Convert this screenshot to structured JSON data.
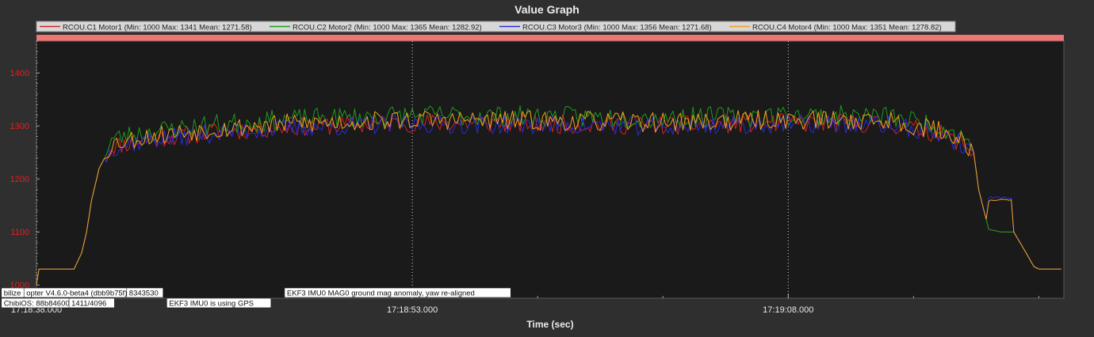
{
  "chart_data": {
    "type": "line",
    "title": "Value Graph",
    "xlabel": "Time (sec)",
    "ylabel": "",
    "x_start": "17:18:38.000",
    "x_tick_labels": [
      "17:18:38.000",
      "17:18:53.000",
      "17:19:08.000"
    ],
    "xlim": [
      0,
      41
    ],
    "ylim": [
      975,
      1460
    ],
    "y_ticks": [
      1000,
      1100,
      1200,
      1300,
      1400
    ],
    "grid": true,
    "legend_position": "top",
    "colors": {
      "background": "#2f2f2f",
      "plot_bg": "#1a1a1a",
      "axis_text": "#e8e8e8",
      "y_tick_text": "#e02020",
      "legend_bg": "#d7d7d7",
      "banner": "#f07676"
    },
    "series": [
      {
        "name": "RCOU.C1 Motor1",
        "legend_label": "RCOU.C1 Motor1 (Min: 1000 Max: 1341 Mean: 1271.58)",
        "color": "#d92020",
        "seed": 11,
        "noise": 18,
        "offset": -4,
        "bump": null,
        "x": [
          0,
          0.1,
          1.5,
          1.8,
          2.0,
          2.2,
          2.5,
          3.0,
          4.0,
          5.0,
          7.0,
          10.0,
          15.0,
          20.0,
          25.0,
          30.0,
          34.0,
          36.0,
          37.0,
          37.4,
          37.6,
          38.0,
          38.5,
          39.0,
          39.5,
          39.8,
          40.0,
          41.0
        ],
        "y": [
          1000,
          1030,
          1030,
          1060,
          1100,
          1160,
          1220,
          1265,
          1275,
          1282,
          1292,
          1302,
          1310,
          1308,
          1305,
          1310,
          1308,
          1290,
          1270,
          1250,
          1180,
          1105,
          1100,
          1100,
          1060,
          1035,
          1030,
          1030
        ]
      },
      {
        "name": "RCOU.C2 Motor2",
        "legend_label": "RCOU.C2 Motor2 (Min: 1000 Max: 1365 Mean: 1282.92)",
        "color": "#1f9a1f",
        "seed": 23,
        "noise": 20,
        "offset": 10,
        "bump": null,
        "x": [
          0,
          0.1,
          1.5,
          1.8,
          2.0,
          2.2,
          2.5,
          3.0,
          4.0,
          5.0,
          7.0,
          10.0,
          15.0,
          20.0,
          25.0,
          30.0,
          34.0,
          36.0,
          37.0,
          37.4,
          37.6,
          38.0,
          38.5,
          39.0,
          39.5,
          39.8,
          40.0,
          41.0
        ],
        "y": [
          1000,
          1030,
          1030,
          1060,
          1100,
          1160,
          1220,
          1265,
          1275,
          1282,
          1292,
          1302,
          1310,
          1308,
          1305,
          1310,
          1308,
          1290,
          1270,
          1250,
          1180,
          1105,
          1100,
          1100,
          1060,
          1035,
          1030,
          1030
        ]
      },
      {
        "name": "RCOU.C3 Motor3",
        "legend_label": "RCOU.C3 Motor3 (Min: 1000 Max: 1356 Mean: 1271.68)",
        "color": "#2a2ae0",
        "seed": 37,
        "noise": 18,
        "offset": -6,
        "bump": {
          "from": 38.0,
          "to": 39.0,
          "top": 1165
        },
        "x": [
          0,
          0.1,
          1.5,
          1.8,
          2.0,
          2.2,
          2.5,
          3.0,
          4.0,
          5.0,
          7.0,
          10.0,
          15.0,
          20.0,
          25.0,
          30.0,
          34.0,
          36.0,
          37.0,
          37.4,
          37.6,
          38.0,
          38.5,
          39.0,
          39.5,
          39.8,
          40.0,
          41.0
        ],
        "y": [
          1000,
          1030,
          1030,
          1060,
          1100,
          1160,
          1220,
          1265,
          1275,
          1282,
          1292,
          1302,
          1310,
          1308,
          1305,
          1310,
          1308,
          1290,
          1270,
          1250,
          1180,
          1105,
          1100,
          1100,
          1060,
          1035,
          1030,
          1030
        ]
      },
      {
        "name": "RCOU.C4 Motor4",
        "legend_label": "RCOU.C4 Motor4 (Min: 1000 Max: 1351 Mean: 1278.82)",
        "color": "#f0a020",
        "seed": 53,
        "noise": 19,
        "offset": 2,
        "bump": {
          "from": 38.0,
          "to": 39.0,
          "top": 1160
        },
        "x": [
          0,
          0.1,
          1.5,
          1.8,
          2.0,
          2.2,
          2.5,
          3.0,
          4.0,
          5.0,
          7.0,
          10.0,
          15.0,
          20.0,
          25.0,
          30.0,
          34.0,
          36.0,
          37.0,
          37.4,
          37.6,
          38.0,
          38.5,
          39.0,
          39.5,
          39.8,
          40.0,
          41.0
        ],
        "y": [
          1000,
          1030,
          1030,
          1060,
          1100,
          1160,
          1220,
          1265,
          1275,
          1282,
          1292,
          1302,
          1310,
          1308,
          1305,
          1310,
          1308,
          1290,
          1270,
          1250,
          1180,
          1105,
          1100,
          1100,
          1060,
          1035,
          1030,
          1030
        ]
      }
    ],
    "annotations": [
      {
        "text": "bilize",
        "at": -1.4,
        "row": 0
      },
      {
        "text": "opter V4.6.0-beta4 (dbb9b75f)",
        "at": -0.5,
        "row": 0
      },
      {
        "text": "8343530",
        "at": 3.6,
        "row": 0
      },
      {
        "text": "EKF3 IMU0 MAG0 ground mag anomaly, yaw re-aligned",
        "at": 9.9,
        "row": 0
      },
      {
        "text": "ChibiOS: 88b84600",
        "at": -1.4,
        "row": 1
      },
      {
        "text": "1411/4096",
        "at": 1.3,
        "row": 1
      },
      {
        "text": "EKF3 IMU0 is using GPS",
        "at": 5.2,
        "row": 1
      }
    ]
  }
}
